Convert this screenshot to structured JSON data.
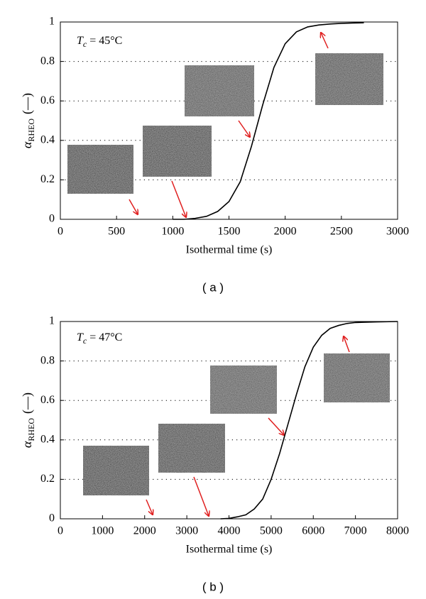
{
  "chart_data": [
    {
      "type": "line",
      "panel_label": "( a )",
      "annotation": {
        "symbol": "T",
        "subscript": "c",
        "text": " = 45°C"
      },
      "x_label": "Isothermal time (s)",
      "y_label": {
        "symbol": "α",
        "subscript": "RHEO",
        "unit": "(—)"
      },
      "x": [
        1000,
        1100,
        1200,
        1300,
        1400,
        1500,
        1600,
        1700,
        1800,
        1900,
        2000,
        2100,
        2200,
        2300,
        2400,
        2500,
        2600,
        2700
      ],
      "values": [
        0,
        0,
        0.005,
        0.015,
        0.04,
        0.09,
        0.19,
        0.37,
        0.58,
        0.77,
        0.89,
        0.95,
        0.975,
        0.985,
        0.99,
        0.993,
        0.995,
        0.996
      ],
      "color": "#000000",
      "xlim": [
        0,
        3000
      ],
      "xticks": [
        0,
        500,
        1000,
        1500,
        2000,
        2500,
        3000
      ],
      "ylim": [
        0,
        1
      ],
      "yticks": [
        0,
        0.2,
        0.4,
        0.6,
        0.8,
        1
      ],
      "grid": true
    },
    {
      "type": "line",
      "panel_label": "( b )",
      "annotation": {
        "symbol": "T",
        "subscript": "c",
        "text": " = 47°C"
      },
      "x_label": "Isothermal time (s)",
      "y_label": {
        "symbol": "α",
        "subscript": "RHEO",
        "unit": "(—)"
      },
      "x": [
        3800,
        4000,
        4200,
        4400,
        4600,
        4800,
        5000,
        5200,
        5400,
        5600,
        5800,
        6000,
        6200,
        6400,
        6600,
        6800,
        7000,
        7500,
        8000
      ],
      "values": [
        0,
        0.002,
        0.01,
        0.02,
        0.05,
        0.1,
        0.2,
        0.33,
        0.48,
        0.63,
        0.77,
        0.87,
        0.93,
        0.965,
        0.98,
        0.99,
        0.995,
        0.998,
        1
      ],
      "color": "#000000",
      "xlim": [
        0,
        8000
      ],
      "xticks": [
        0,
        1000,
        2000,
        3000,
        4000,
        5000,
        6000,
        7000,
        8000
      ],
      "ylim": [
        0,
        1
      ],
      "yticks": [
        0,
        0.2,
        0.4,
        0.6,
        0.8,
        1
      ],
      "grid": true
    }
  ]
}
